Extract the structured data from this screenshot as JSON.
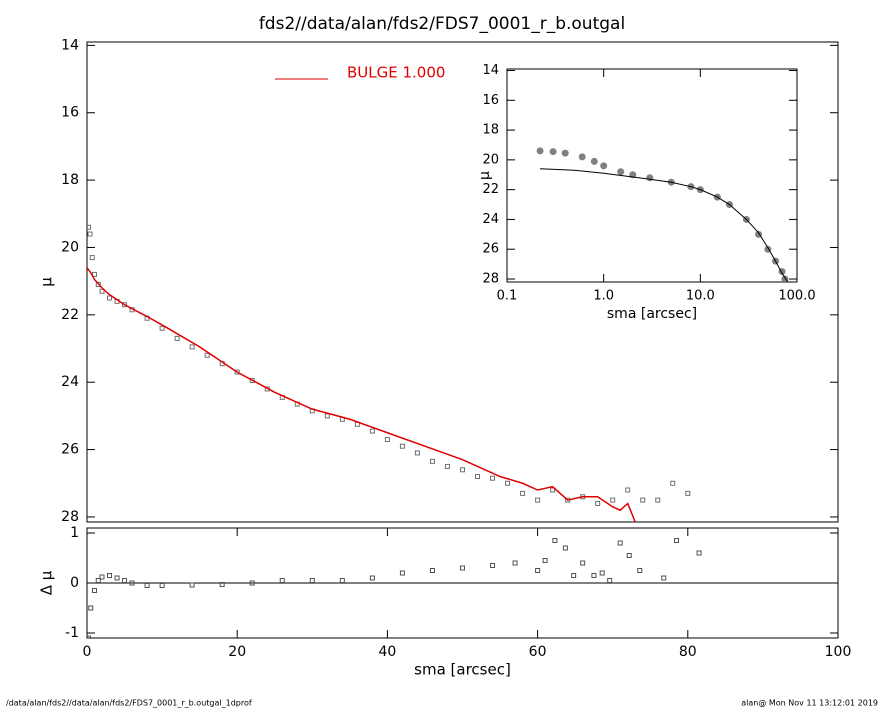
{
  "chart_data": [
    {
      "type": "line",
      "title": "fds2//data/alan/fds2/FDS7_0001_r_b.outgal",
      "ylabel": "μ",
      "xlim": [
        0,
        100
      ],
      "ylim": [
        28.15,
        13.9
      ],
      "yticks": [
        14,
        16,
        18,
        20,
        22,
        24,
        26,
        28
      ],
      "legend": "upper-left",
      "series": [
        {
          "style": "markers",
          "color": "#707070",
          "x": [
            0.2,
            0.4,
            0.7,
            1,
            1.5,
            2,
            3,
            4,
            5,
            6,
            8,
            10,
            12,
            14,
            16,
            18,
            20,
            22,
            24,
            26,
            28,
            30,
            32,
            34,
            36,
            38,
            40,
            42,
            44,
            46,
            48,
            50,
            52,
            54,
            56,
            58,
            60,
            62,
            64,
            66,
            68,
            70,
            72,
            74,
            76,
            78,
            80
          ],
          "values": [
            19.4,
            19.6,
            20.3,
            20.8,
            21.1,
            21.3,
            21.5,
            21.6,
            21.7,
            21.85,
            22.1,
            22.4,
            22.7,
            22.95,
            23.2,
            23.45,
            23.7,
            23.95,
            24.2,
            24.45,
            24.65,
            24.85,
            25.0,
            25.1,
            25.25,
            25.45,
            25.7,
            25.9,
            26.1,
            26.35,
            26.5,
            26.6,
            26.8,
            26.85,
            27.0,
            27.3,
            27.5,
            27.2,
            27.5,
            27.4,
            27.6,
            27.5,
            27.2,
            27.5,
            27.5,
            27.0,
            27.3
          ]
        },
        {
          "name": "BULGE  1.000",
          "style": "line",
          "color": "#e00000",
          "x": [
            0,
            0.5,
            1,
            2,
            3,
            5,
            8,
            10,
            15,
            20,
            25,
            30,
            35,
            40,
            45,
            50,
            55,
            58,
            60,
            62,
            64,
            66,
            68,
            70,
            71,
            72,
            73
          ],
          "values": [
            20.6,
            20.75,
            20.95,
            21.2,
            21.4,
            21.7,
            22.05,
            22.3,
            22.95,
            23.7,
            24.3,
            24.8,
            25.1,
            25.5,
            25.9,
            26.3,
            26.8,
            27.0,
            27.2,
            27.1,
            27.5,
            27.4,
            27.4,
            27.7,
            27.8,
            27.6,
            28.15
          ]
        }
      ]
    },
    {
      "type": "line",
      "xlabel": "sma [arcsec]",
      "ylabel": "Δ μ",
      "xlim": [
        0,
        100
      ],
      "xticks": [
        0,
        20,
        40,
        60,
        80,
        100
      ],
      "ylim": [
        -1.1,
        1.1
      ],
      "yticks": [
        -1,
        0,
        1
      ],
      "series": [
        {
          "style": "markers",
          "color": "#505050",
          "x": [
            0.2,
            0.5,
            1,
            1.5,
            2,
            3,
            4,
            5,
            6,
            8,
            10,
            14,
            18,
            22,
            26,
            30,
            34,
            38,
            42,
            46,
            50,
            54,
            57,
            60,
            61,
            62.3,
            63.7,
            64.8,
            66,
            67.5,
            68.6,
            69.6,
            71,
            72.2,
            73.6,
            76.8,
            78.5,
            81.5
          ],
          "values": [
            -1.1,
            -0.5,
            -0.15,
            0.05,
            0.12,
            0.15,
            0.1,
            0.05,
            0.0,
            -0.05,
            -0.05,
            -0.04,
            -0.03,
            0.0,
            0.05,
            0.05,
            0.05,
            0.1,
            0.2,
            0.25,
            0.3,
            0.35,
            0.4,
            0.25,
            0.45,
            0.85,
            0.7,
            0.15,
            0.4,
            0.15,
            0.2,
            0.05,
            0.8,
            0.55,
            0.25,
            0.1,
            0.85,
            0.6
          ]
        }
      ]
    },
    {
      "type": "line",
      "xlabel": "sma [arcsec]",
      "ylabel": "μ",
      "xscale": "log",
      "xlim": [
        0.1,
        100
      ],
      "xticks": [
        0.1,
        {
          "value": 1,
          "label": "1.0"
        },
        {
          "value": 10,
          "label": "10.0"
        },
        {
          "value": 100,
          "label": "100.0"
        }
      ],
      "ylim": [
        28.2,
        13.9
      ],
      "yticks": [
        14,
        16,
        18,
        20,
        22,
        24,
        26,
        28
      ],
      "series": [
        {
          "style": "markers",
          "color": "#808080",
          "x": [
            0.22,
            0.3,
            0.4,
            0.6,
            0.8,
            1,
            1.5,
            2,
            3,
            5,
            8,
            10,
            15,
            20,
            30,
            40,
            50,
            60,
            70,
            75
          ],
          "values": [
            19.4,
            19.45,
            19.55,
            19.8,
            20.1,
            20.4,
            20.8,
            21.0,
            21.2,
            21.5,
            21.8,
            22.0,
            22.5,
            23.0,
            24.0,
            25.0,
            26.0,
            26.8,
            27.5,
            28.0
          ]
        },
        {
          "style": "line",
          "color": "#000000",
          "x": [
            0.22,
            0.5,
            1,
            2,
            3,
            5,
            8,
            10,
            15,
            20,
            30,
            40,
            50,
            60,
            70,
            80
          ],
          "values": [
            20.6,
            20.7,
            20.9,
            21.15,
            21.3,
            21.5,
            21.8,
            22.0,
            22.5,
            23.0,
            24.0,
            24.9,
            25.9,
            26.8,
            27.6,
            28.2
          ]
        }
      ]
    }
  ],
  "footer": {
    "left": "/data/alan/fds2//data/alan/fds2/FDS7_0001_r_b.outgal_1dprof",
    "right": "alan@  Mon Nov 11 13:12:01 2019"
  }
}
